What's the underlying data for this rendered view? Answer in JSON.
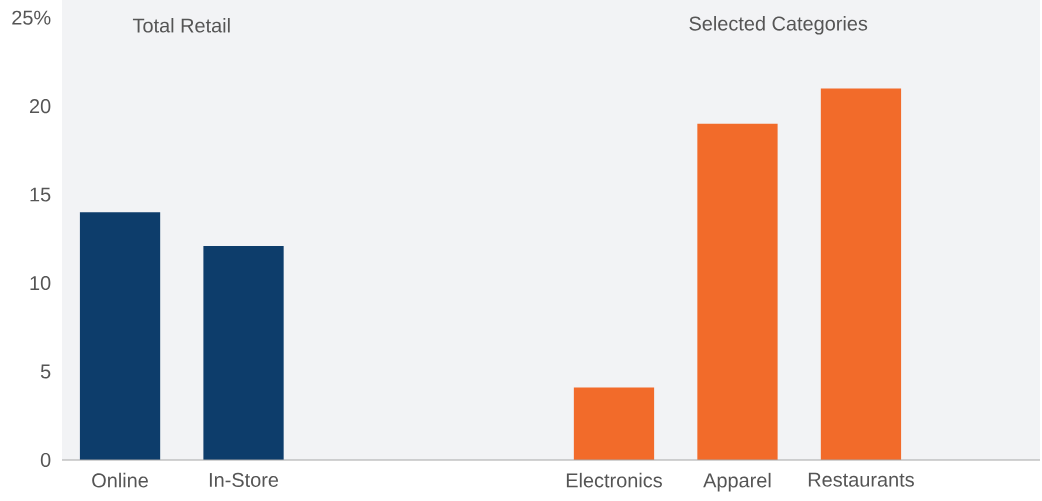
{
  "chart_data": {
    "type": "bar",
    "categories": [
      "Online",
      "In-Store",
      null,
      null,
      "Electronics",
      "Apparel",
      "Restaurants",
      null
    ],
    "values": [
      14.0,
      12.1,
      null,
      null,
      4.1,
      19.0,
      21.0,
      null
    ],
    "colors": [
      "#0d3d6b",
      "#0d3d6b",
      null,
      null,
      "#f26b2a",
      "#f26b2a",
      "#f26b2a",
      null
    ],
    "ylim": [
      0,
      26
    ],
    "yticks": [
      0,
      5,
      10,
      15,
      20,
      {
        "value": 25,
        "label": "25%"
      }
    ],
    "annotations": [
      "Total Retail",
      "Selected Categories"
    ]
  }
}
